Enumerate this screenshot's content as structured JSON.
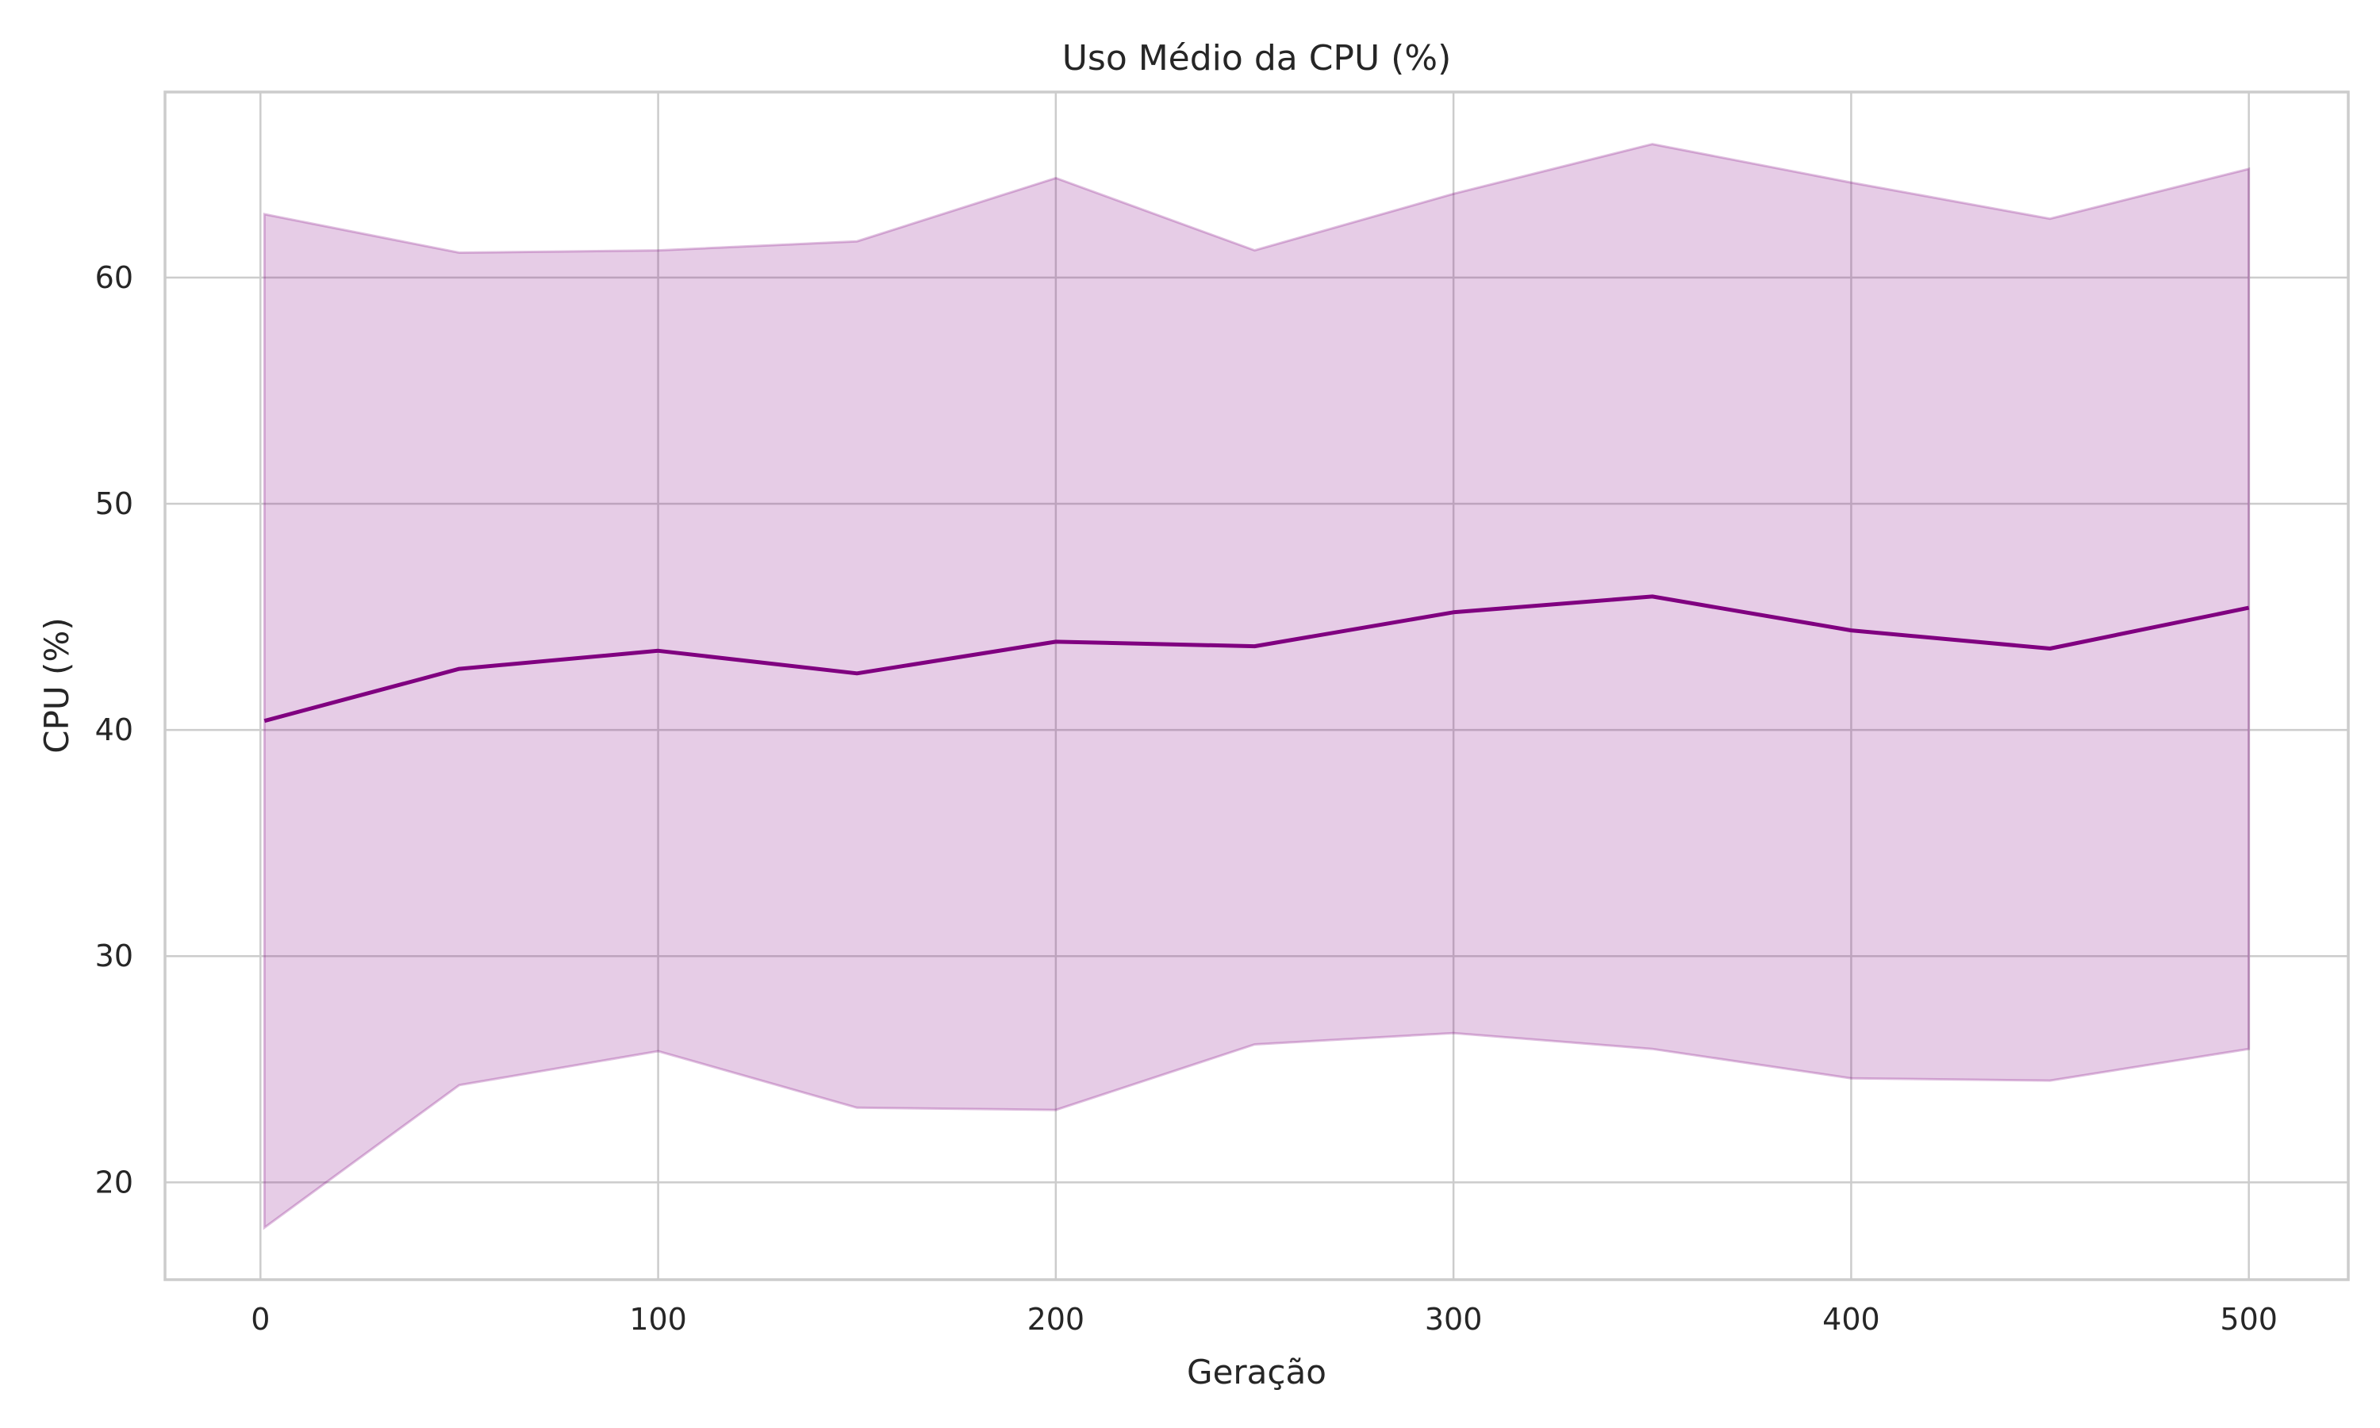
{
  "chart_data": {
    "type": "line",
    "title": "Uso Médio da CPU (%)",
    "xlabel": "Geração",
    "ylabel": "CPU (%)",
    "x": [
      1,
      50,
      100,
      150,
      200,
      250,
      300,
      350,
      400,
      450,
      500
    ],
    "series": [
      {
        "values": [
          40.4,
          42.7,
          43.5,
          42.5,
          43.9,
          43.7,
          45.2,
          45.9,
          44.4,
          43.6,
          45.4
        ],
        "band_upper": [
          62.8,
          61.1,
          61.2,
          61.6,
          64.4,
          61.2,
          63.7,
          65.9,
          64.2,
          62.6,
          64.8
        ],
        "band_lower": [
          18.0,
          24.3,
          25.8,
          23.3,
          23.2,
          26.1,
          26.6,
          25.9,
          24.6,
          24.5,
          25.9
        ],
        "color": "#800080"
      }
    ],
    "xlim": [
      -24,
      525
    ],
    "ylim": [
      15.7,
      68.2
    ],
    "xticks": [
      0,
      100,
      200,
      300,
      400,
      500
    ],
    "yticks": [
      20,
      30,
      40,
      50,
      60
    ],
    "grid": true,
    "legend": "none"
  }
}
